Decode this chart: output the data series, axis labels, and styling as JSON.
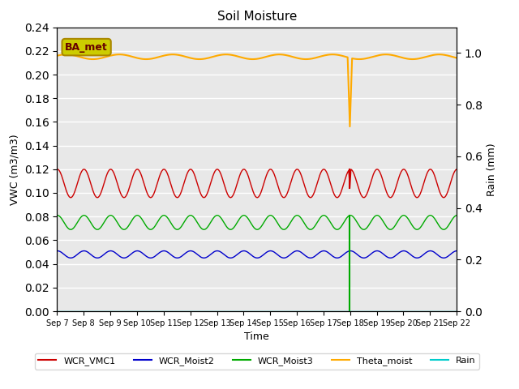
{
  "title": "Soil Moisture",
  "xlabel": "Time",
  "ylabel_left": "VWC (m3/m3)",
  "ylabel_right": "Rain (mm)",
  "background_color": "#e8e8e8",
  "ylim_left": [
    0.0,
    0.24
  ],
  "ylim_right": [
    0.0,
    1.1
  ],
  "num_points": 360,
  "spike_day": 11,
  "label_box": "BA_met",
  "label_box_color": "#cccc00",
  "label_box_text_color": "#660000",
  "legend_labels": [
    "WCR_VMC1",
    "WCR_Moist2",
    "WCR_Moist3",
    "Theta_moist",
    "Rain"
  ],
  "legend_colors": [
    "#cc0000",
    "#0000cc",
    "#00aa00",
    "#ffaa00",
    "#00cccc"
  ],
  "wcr1": {
    "color": "#cc0000",
    "base": 0.108,
    "amp": 0.012,
    "phase": 1.5
  },
  "wcr2": {
    "color": "#0000cc",
    "base": 0.048,
    "amp": 0.003,
    "phase": 1.5
  },
  "wcr3": {
    "color": "#00aa00",
    "base": 0.075,
    "amp": 0.006,
    "phase": 1.5
  },
  "theta": {
    "color": "#ffaa00",
    "base": 0.215,
    "amp": 0.002,
    "phase": 0.5
  },
  "rain": {
    "color": "#00cccc"
  },
  "xtick_labels": [
    "Sep 7",
    "Sep 8",
    "Sep 9",
    "Sep 10",
    "Sep 11",
    "Sep 12",
    "Sep 13",
    "Sep 14",
    "Sep 15",
    "Sep 16",
    "Sep 17",
    "Sep 18",
    "Sep 19",
    "Sep 20",
    "Sep 21",
    "Sep 22"
  ]
}
